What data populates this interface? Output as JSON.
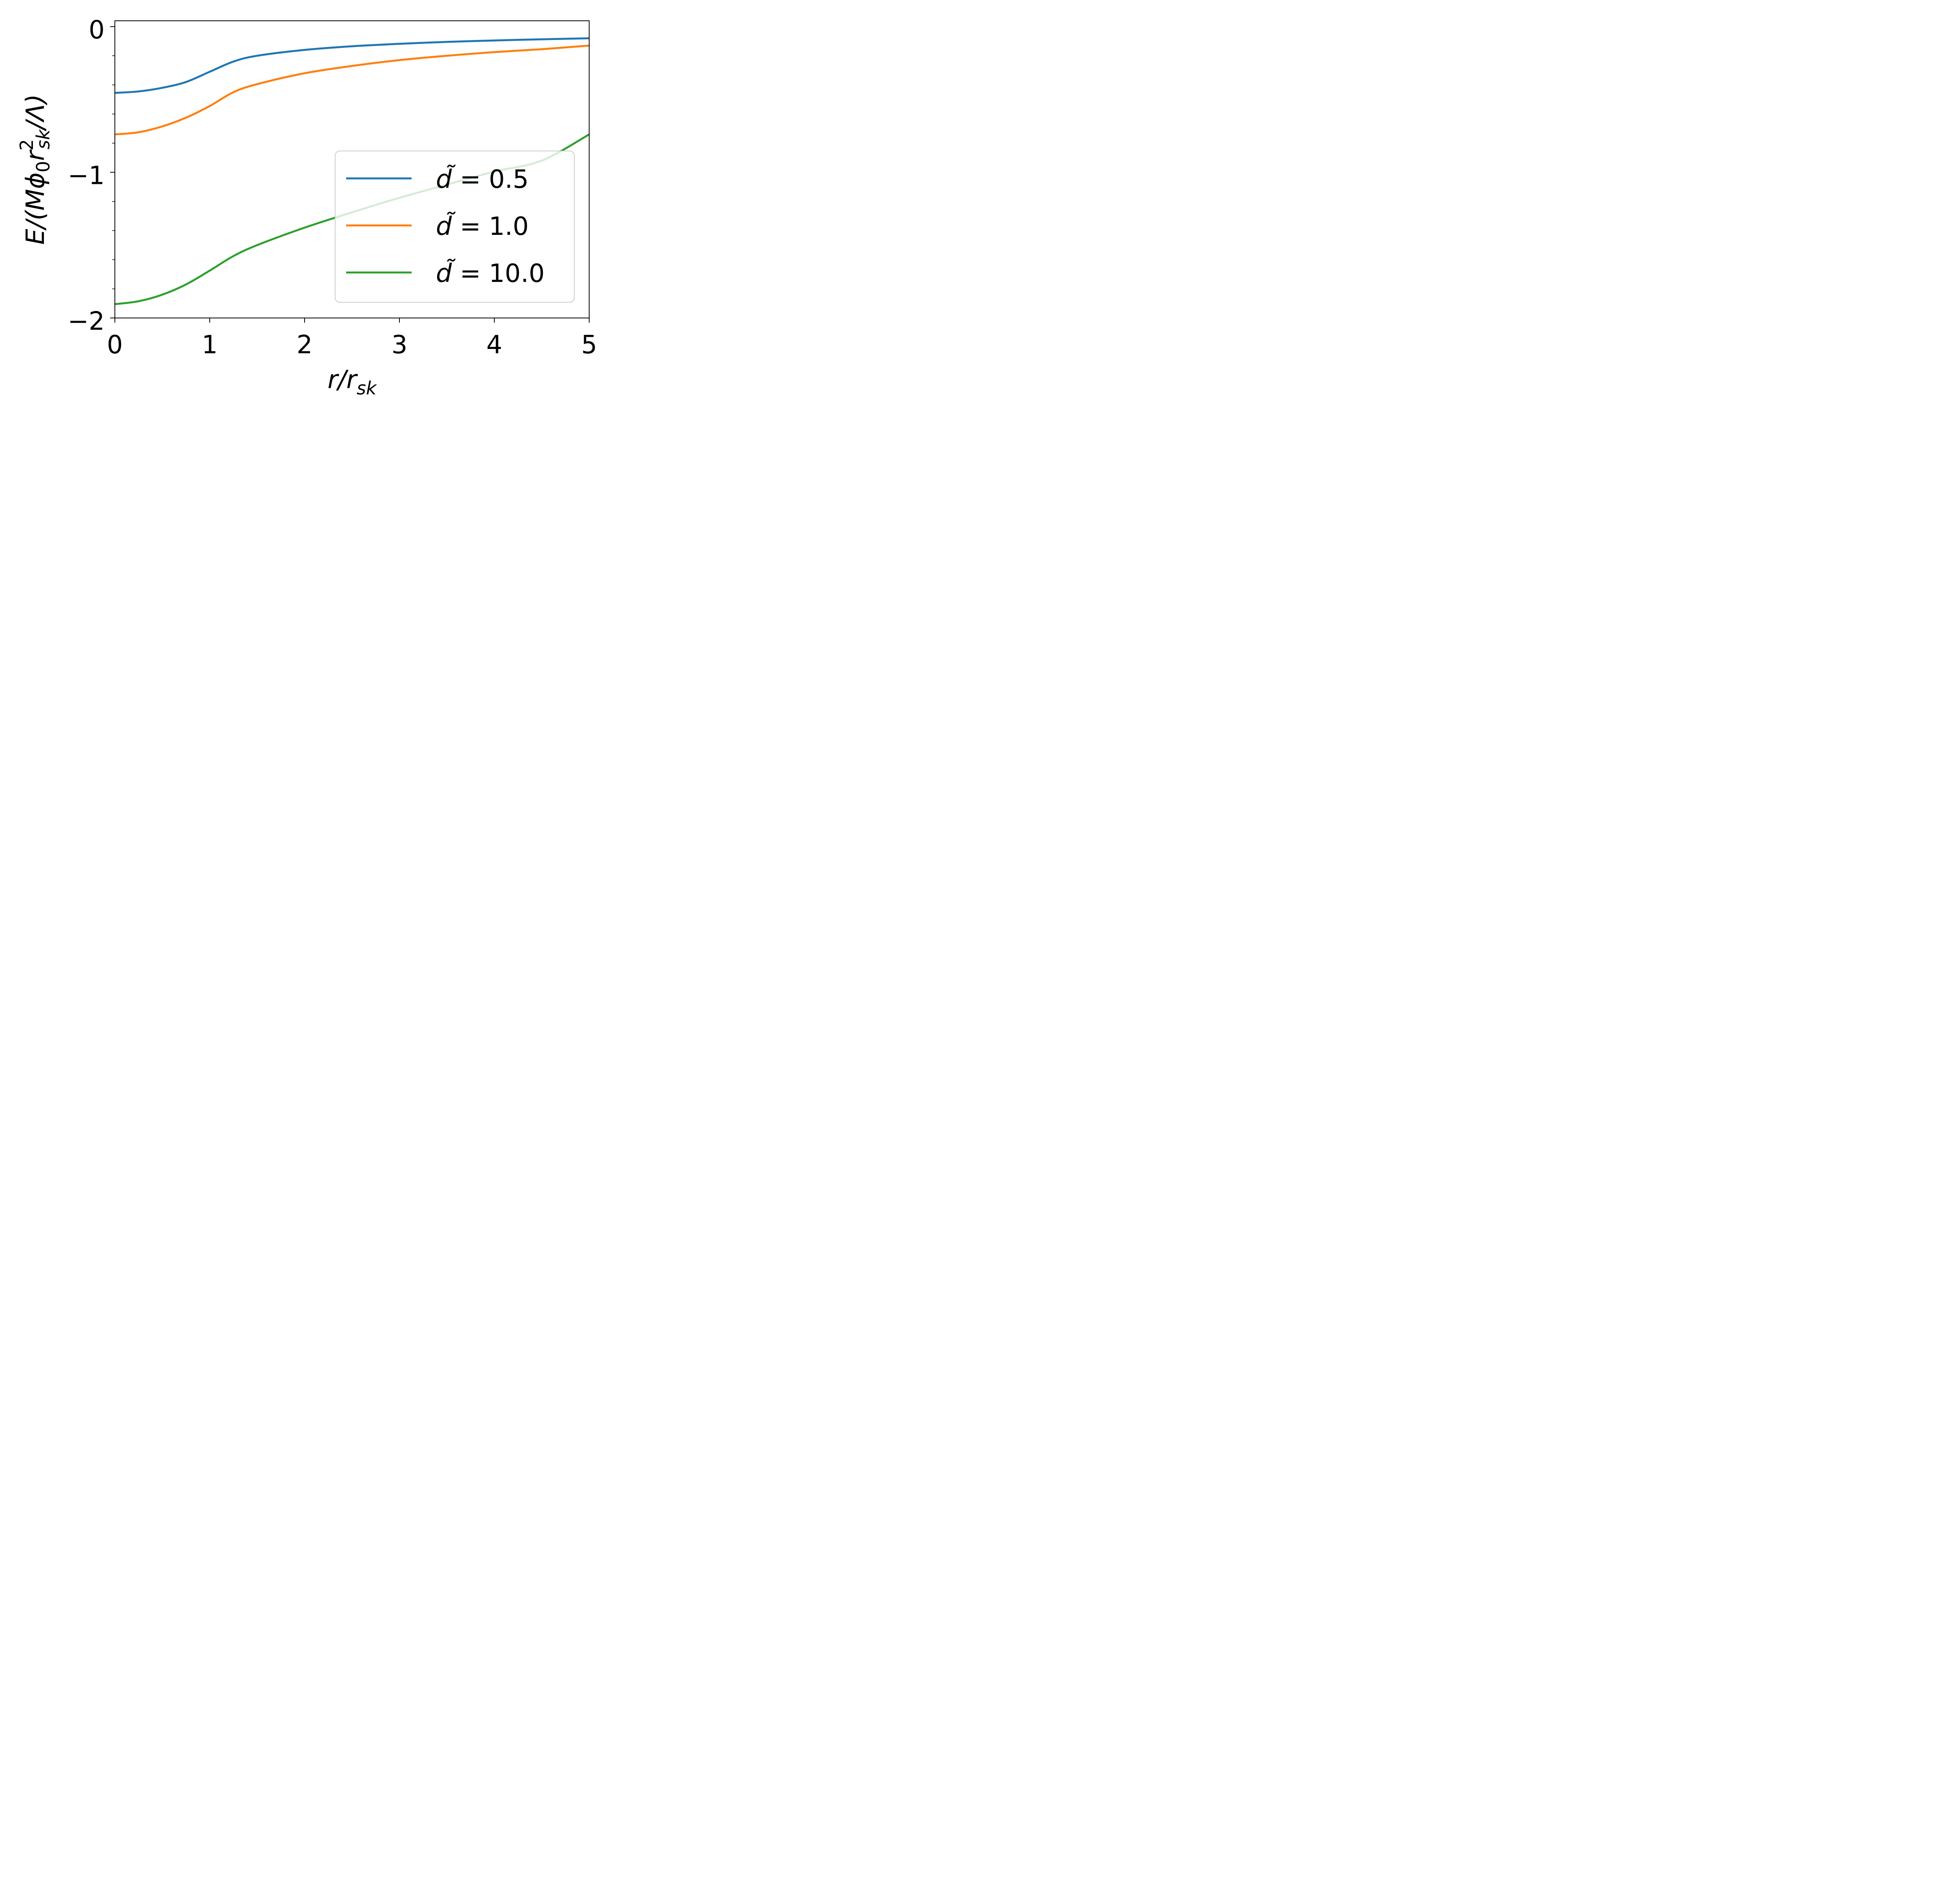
{
  "chart_data": {
    "type": "line",
    "title": "",
    "xlabel": "r/r_sk",
    "ylabel": "E/(Mϕ0 r_sk^2/Λ)",
    "xlim": [
      0,
      5
    ],
    "ylim": [
      -2,
      0.04
    ],
    "x_ticks": [
      0,
      1,
      2,
      3,
      4,
      5
    ],
    "x_tick_labels": [
      "0",
      "1",
      "2",
      "3",
      "4",
      "5"
    ],
    "y_ticks": [
      -2,
      -1,
      0
    ],
    "y_tick_labels": [
      "−2",
      "−1",
      "0"
    ],
    "y_minor_ticks": [
      -1.8,
      -1.6,
      -1.4,
      -1.2,
      -0.8,
      -0.6,
      -0.4,
      -0.2
    ],
    "grid": false,
    "legend_position": "lower right",
    "series": [
      {
        "name": "d̃ = 0.5",
        "color": "#1f77b4",
        "x": [
          0,
          0.25,
          0.5,
          0.75,
          1.0,
          1.25,
          1.5,
          2.0,
          2.5,
          3.0,
          3.5,
          4.0,
          4.5,
          5.0
        ],
        "y": [
          -0.455,
          -0.445,
          -0.42,
          -0.38,
          -0.31,
          -0.24,
          -0.2,
          -0.16,
          -0.135,
          -0.118,
          -0.105,
          -0.095,
          -0.087,
          -0.08
        ]
      },
      {
        "name": "d̃ = 1.0",
        "color": "#ff7f0e",
        "x": [
          0,
          0.25,
          0.5,
          0.75,
          1.0,
          1.25,
          1.5,
          2.0,
          2.5,
          3.0,
          3.5,
          4.0,
          4.5,
          5.0
        ],
        "y": [
          -0.74,
          -0.725,
          -0.685,
          -0.625,
          -0.545,
          -0.45,
          -0.395,
          -0.32,
          -0.27,
          -0.23,
          -0.2,
          -0.175,
          -0.155,
          -0.13
        ]
      },
      {
        "name": "d̃ = 10.0",
        "color": "#2ca02c",
        "x": [
          0,
          0.25,
          0.5,
          0.75,
          1.0,
          1.25,
          1.5,
          2.0,
          2.5,
          3.0,
          3.5,
          4.0,
          4.5,
          5.0
        ],
        "y": [
          -1.905,
          -1.885,
          -1.84,
          -1.77,
          -1.675,
          -1.575,
          -1.5,
          -1.38,
          -1.275,
          -1.175,
          -1.085,
          -0.995,
          -0.92,
          -0.74
        ]
      }
    ]
  }
}
